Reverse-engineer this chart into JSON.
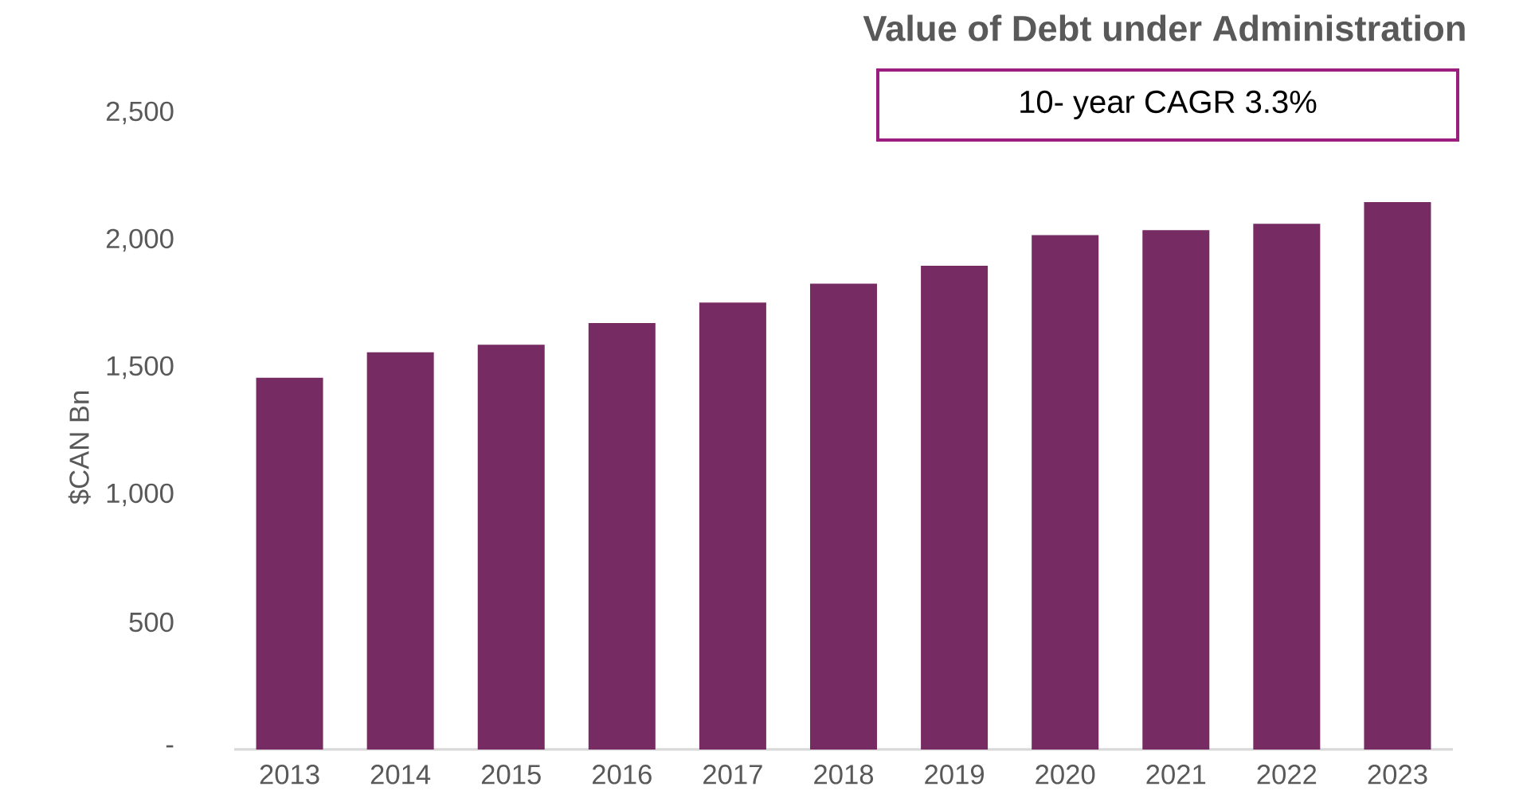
{
  "chart_data": {
    "type": "bar",
    "title": "Value of Debt under Administration",
    "ylabel": "$CAN Bn",
    "annotations": [
      "10- year CAGR 3.3%"
    ],
    "categories": [
      "2013",
      "2014",
      "2015",
      "2016",
      "2017",
      "2018",
      "2019",
      "2020",
      "2021",
      "2022",
      "2023"
    ],
    "values": [
      1460,
      1560,
      1590,
      1675,
      1755,
      1830,
      1900,
      2020,
      2040,
      2065,
      2150
    ],
    "color": "#772b63",
    "ylim": [
      0,
      2500
    ],
    "yticks": [
      {
        "value": 0,
        "label": "-"
      },
      500,
      {
        "value": 1000,
        "label": "1,000"
      },
      {
        "value": 1500,
        "label": "1,500"
      },
      {
        "value": 2000,
        "label": "2,000"
      },
      {
        "value": 2500,
        "label": "2,500"
      }
    ],
    "grid": false
  }
}
